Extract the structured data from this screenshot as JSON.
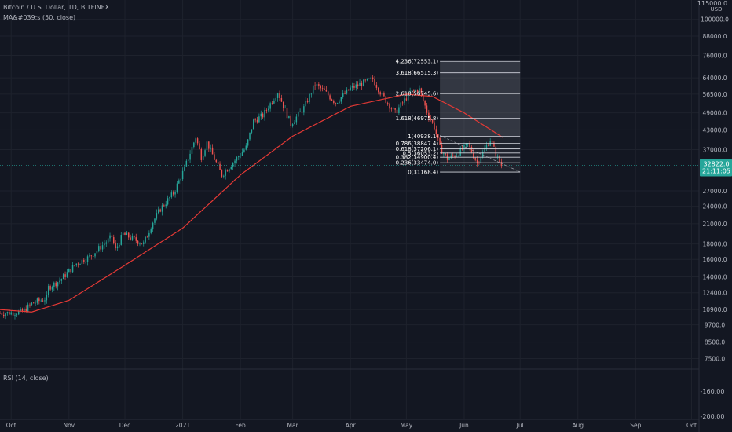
{
  "header": {
    "symbol_line": "Bitcoin / U.S. Dollar, 1D, BITFINEX",
    "ma_label": "MA&#039;s (50, close)",
    "rsi_label": "RSI (14, close)"
  },
  "price_axis": {
    "currency": "USD",
    "top_partial": "115000.0",
    "ticks": [
      100000,
      88000,
      76000,
      64000,
      56500,
      49000,
      43000,
      37000,
      32822,
      27000,
      24000,
      21000,
      18000,
      16000,
      14000,
      12400,
      10900,
      9700,
      8500,
      7500
    ],
    "tick_labels": [
      "100000.0",
      "88000.0",
      "76000.0",
      "64000.0",
      "56500.0",
      "49000.0",
      "43000.0",
      "37000.0",
      "",
      "27000.0",
      "24000.0",
      "21000.0",
      "18000.0",
      "16000.0",
      "14000.0",
      "12400.0",
      "10900.0",
      "9700.0",
      "8500.0",
      "7500.0"
    ],
    "rsi_ticks": [
      "-160.00",
      "-200.00"
    ],
    "current_price": "32822.0",
    "countdown": "21:11:05",
    "current_color": "#26a69a"
  },
  "time_axis": {
    "labels": [
      "Oct",
      "Nov",
      "Dec",
      "2021",
      "Feb",
      "Mar",
      "Apr",
      "May",
      "Jun",
      "Jul",
      "Aug",
      "Sep",
      "Oct"
    ]
  },
  "chart_data": {
    "type": "candlestick",
    "title": "Bitcoin / U.S. Dollar, 1D, BITFINEX",
    "y_scale": "log",
    "ylim": [
      7000,
      116000
    ],
    "x_range": [
      "2020-09-25",
      "2021-10-05"
    ],
    "colors": {
      "up": "#26a69a",
      "down": "#ef5350",
      "ma": "#e53935",
      "fib": "#d1d4dc"
    },
    "price_path": [
      [
        "2020-09-25",
        10600
      ],
      [
        "2020-10-07",
        10700
      ],
      [
        "2020-10-12",
        11400
      ],
      [
        "2020-10-20",
        11900
      ],
      [
        "2020-10-21",
        12900
      ],
      [
        "2020-10-27",
        13600
      ],
      [
        "2020-11-05",
        15500
      ],
      [
        "2020-11-12",
        16300
      ],
      [
        "2020-11-24",
        19000
      ],
      [
        "2020-11-26",
        17200
      ],
      [
        "2020-11-30",
        19400
      ],
      [
        "2020-12-11",
        18000
      ],
      [
        "2020-12-16",
        21300
      ],
      [
        "2020-12-20",
        23500
      ],
      [
        "2020-12-27",
        26500
      ],
      [
        "2021-01-02",
        32000
      ],
      [
        "2021-01-08",
        40700
      ],
      [
        "2021-01-11",
        35000
      ],
      [
        "2021-01-14",
        39000
      ],
      [
        "2021-01-22",
        30500
      ],
      [
        "2021-01-28",
        33500
      ],
      [
        "2021-02-04",
        37600
      ],
      [
        "2021-02-08",
        46000
      ],
      [
        "2021-02-13",
        48000
      ],
      [
        "2021-02-21",
        57500
      ],
      [
        "2021-02-28",
        45000
      ],
      [
        "2021-03-07",
        50900
      ],
      [
        "2021-03-13",
        60900
      ],
      [
        "2021-03-18",
        57700
      ],
      [
        "2021-03-24",
        53000
      ],
      [
        "2021-04-01",
        59000
      ],
      [
        "2021-04-13",
        63500
      ],
      [
        "2021-04-18",
        56000
      ],
      [
        "2021-04-25",
        49000
      ],
      [
        "2021-05-03",
        57200
      ],
      [
        "2021-05-08",
        58500
      ],
      [
        "2021-05-12",
        49500
      ],
      [
        "2021-05-16",
        44000
      ],
      [
        "2021-05-19",
        37500
      ],
      [
        "2021-05-23",
        34500
      ],
      [
        "2021-05-28",
        35700
      ],
      [
        "2021-06-03",
        38500
      ],
      [
        "2021-06-08",
        33500
      ],
      [
        "2021-06-15",
        40000
      ],
      [
        "2021-06-18",
        35800
      ],
      [
        "2021-06-21",
        32800
      ]
    ],
    "ma50": [
      [
        "2020-09-25",
        10900
      ],
      [
        "2020-10-12",
        10700
      ],
      [
        "2020-11-01",
        11700
      ],
      [
        "2020-12-01",
        15300
      ],
      [
        "2021-01-01",
        20300
      ],
      [
        "2021-02-01",
        30500
      ],
      [
        "2021-03-01",
        41000
      ],
      [
        "2021-04-01",
        51500
      ],
      [
        "2021-05-01",
        56500
      ],
      [
        "2021-05-15",
        55500
      ],
      [
        "2021-06-01",
        49000
      ],
      [
        "2021-06-22",
        40500
      ]
    ],
    "fibonacci": {
      "range": [
        "2021-05-19",
        "2021-07-01"
      ],
      "levels": [
        {
          "label": "4.236(72553.1)",
          "price": 72553.1
        },
        {
          "label": "3.618(66515.3)",
          "price": 66515.3
        },
        {
          "label": "2.618(56745.6)",
          "price": 56745.6
        },
        {
          "label": "1.618(46975.8)",
          "price": 46975.8
        },
        {
          "label": "1(40938.1)",
          "price": 40938.1
        },
        {
          "label": "0.786(38847.4)",
          "price": 38847.4
        },
        {
          "label": "0.618(37206.1)",
          "price": 37206.1
        },
        {
          "label": "0.5(36053.2)",
          "price": 36053.2
        },
        {
          "label": "0.382(34900.4)",
          "price": 34900.4
        },
        {
          "label": "0.236(33474.0)",
          "price": 33474.0
        },
        {
          "label": "0(31168.4)",
          "price": 31168.4
        }
      ]
    },
    "trendline": [
      [
        "2021-05-19",
        41200
      ],
      [
        "2021-07-01",
        31200
      ]
    ],
    "current_price": 32822.0
  }
}
